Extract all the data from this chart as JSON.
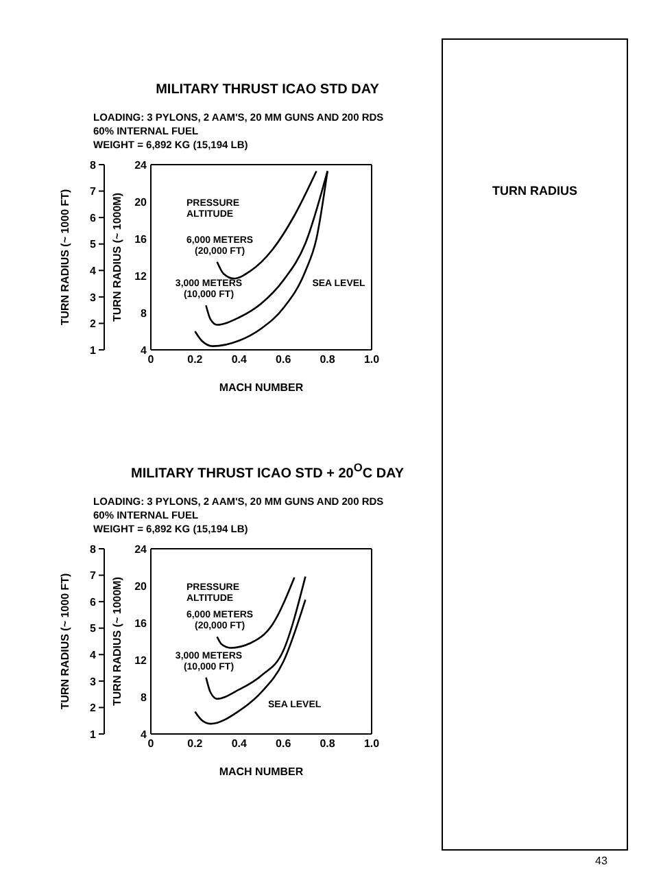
{
  "chart_data": [
    {
      "type": "line",
      "title": "MILITARY THRUST ICAO STD DAY",
      "subtitle": "LOADING:  3 PYLONS, 2 AAM'S, 20 MM GUNS AND 200 RDS\n60% INTERNAL FUEL\nWEIGHT = 6,892 KG (15,194 LB)",
      "xlabel": "MACH NUMBER",
      "ylabel": "TURN RADIUS (~ 1000M)",
      "y2label": "TURN RADIUS (~ 1000 FT)",
      "annotations": [
        "PRESSURE\nALTITUDE"
      ],
      "xlim": [
        0,
        1.0
      ],
      "xticks": [
        0,
        0.2,
        0.4,
        0.6,
        0.8,
        {
          "value": 1,
          "label": "1.0"
        }
      ],
      "ylim": [
        4,
        24
      ],
      "yticks": [
        4,
        8,
        12,
        16,
        20,
        24
      ],
      "y2lim": [
        1,
        8
      ],
      "y2ticks": [
        1,
        2,
        3,
        4,
        5,
        6,
        7,
        8
      ],
      "grid": false,
      "legend": false,
      "marker": "none",
      "line_style": "solid",
      "series": [
        {
          "name": "6,000 METERS\n(20,000 FT)",
          "color": "#000000",
          "x": [
            0.3,
            0.33,
            0.376,
            0.45,
            0.55,
            0.65,
            0.75
          ],
          "values": [
            13.5,
            12.2,
            11.7,
            12.5,
            14.8,
            18.5,
            23.3
          ]
        },
        {
          "name": "3,000 METERS\n(10,000 FT)",
          "color": "#000000",
          "x": [
            0.25,
            0.27,
            0.3,
            0.4,
            0.5,
            0.6,
            0.7,
            0.8
          ],
          "values": [
            8.8,
            7.3,
            6.7,
            7.5,
            9.0,
            11.5,
            15.5,
            23.3
          ]
        },
        {
          "name": "SEA LEVEL",
          "color": "#000000",
          "x": [
            0.2,
            0.23,
            0.28,
            0.4,
            0.5,
            0.6,
            0.7,
            0.75,
            0.8
          ],
          "values": [
            6.0,
            5.0,
            4.4,
            5.0,
            6.3,
            8.5,
            12.5,
            16.0,
            23.3
          ]
        }
      ]
    },
    {
      "type": "line",
      "title": "MILITARY THRUST ICAO STD + 20$^{O}$C DAY",
      "subtitle": "LOADING:  3 PYLONS, 2 AAM'S, 20 MM GUNS AND 200 RDS\n60% INTERNAL FUEL\nWEIGHT = 6,892 KG (15,194 LB)",
      "xlabel": "MACH NUMBER",
      "ylabel": "TURN RADIUS (~ 1000M)",
      "y2label": "TURN RADIUS (~ 1000 FT)",
      "annotations": [
        "PRESSURE\nALTITUDE"
      ],
      "xlim": [
        0,
        1.0
      ],
      "xticks": [
        0,
        0.2,
        0.4,
        0.6,
        0.8,
        {
          "value": 1,
          "label": "1.0"
        }
      ],
      "ylim": [
        4,
        24
      ],
      "yticks": [
        4,
        8,
        12,
        16,
        20,
        24
      ],
      "y2lim": [
        1,
        8
      ],
      "y2ticks": [
        1,
        2,
        3,
        4,
        5,
        6,
        7,
        8
      ],
      "grid": false,
      "legend": false,
      "marker": "none",
      "line_style": "solid",
      "series": [
        {
          "name": "6,000 METERS\n(20,000 FT)",
          "color": "#000000",
          "x": [
            0.3,
            0.32,
            0.36,
            0.45,
            0.55,
            0.65
          ],
          "values": [
            14.5,
            13.7,
            13.3,
            13.8,
            15.8,
            20.9
          ]
        },
        {
          "name": "3,000 METERS\n(10,000 FT)",
          "color": "#000000",
          "x": [
            0.25,
            0.27,
            0.3,
            0.4,
            0.5,
            0.6,
            0.7
          ],
          "values": [
            10.1,
            8.5,
            7.8,
            8.8,
            10.3,
            13.0,
            21.0
          ]
        },
        {
          "name": "SEA LEVEL",
          "color": "#000000",
          "x": [
            0.2,
            0.23,
            0.27,
            0.4,
            0.5,
            0.6,
            0.7
          ],
          "values": [
            6.4,
            5.5,
            5.1,
            6.5,
            8.5,
            11.8,
            18.5
          ]
        }
      ]
    },
    {
      "type": "other",
      "title": "TURN RADIUS",
      "annotations": [
        "43"
      ]
    }
  ]
}
